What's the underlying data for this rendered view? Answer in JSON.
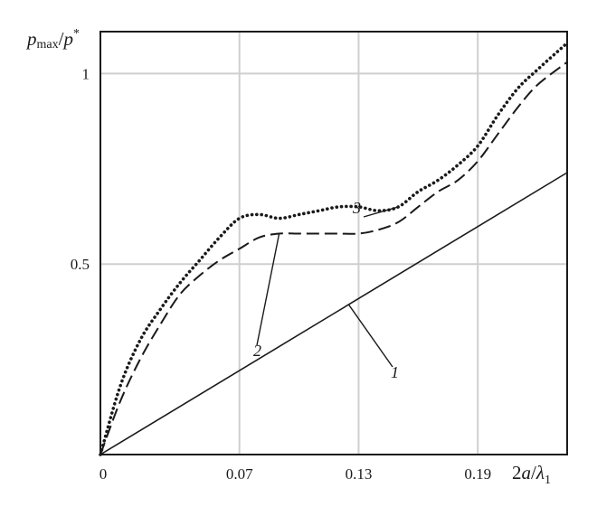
{
  "chart_data": {
    "type": "line",
    "ylabel": {
      "main": "p",
      "sub": "max",
      "sep": "/",
      "main2": "p",
      "sup": "*"
    },
    "xlabel": {
      "pre": "2",
      "main": "a",
      "sep": "/",
      "main2": "λ",
      "sub": "1"
    },
    "x_ticks": [
      "0",
      "0.07",
      "0.13",
      "0.19"
    ],
    "x_tick_values": [
      0,
      0.07,
      0.13,
      0.19
    ],
    "x_grid_values": [
      0.07,
      0.13,
      0.19
    ],
    "y_ticks": [
      "0.5",
      "1"
    ],
    "y_tick_values": [
      0.5,
      1
    ],
    "xlim": [
      0,
      0.235
    ],
    "ylim": [
      0,
      1.11
    ],
    "grid": true,
    "series": [
      {
        "name": "1",
        "style": "solid",
        "x": [
          0,
          0.235
        ],
        "y": [
          0,
          0.74
        ]
      },
      {
        "name": "2",
        "style": "dashed",
        "x": [
          0,
          0.01,
          0.02,
          0.03,
          0.04,
          0.05,
          0.06,
          0.07,
          0.08,
          0.09,
          0.1,
          0.11,
          0.12,
          0.13,
          0.14,
          0.15,
          0.16,
          0.17,
          0.18,
          0.19,
          0.2,
          0.21,
          0.22,
          0.235
        ],
        "y": [
          0.0,
          0.14,
          0.25,
          0.34,
          0.42,
          0.47,
          0.51,
          0.54,
          0.57,
          0.58,
          0.58,
          0.58,
          0.58,
          0.58,
          0.59,
          0.61,
          0.65,
          0.69,
          0.72,
          0.77,
          0.84,
          0.91,
          0.97,
          1.03
        ]
      },
      {
        "name": "3",
        "style": "dotted",
        "x": [
          0,
          0.01,
          0.02,
          0.03,
          0.04,
          0.05,
          0.06,
          0.07,
          0.08,
          0.09,
          0.1,
          0.11,
          0.12,
          0.13,
          0.14,
          0.15,
          0.16,
          0.17,
          0.18,
          0.19,
          0.2,
          0.21,
          0.22,
          0.235
        ],
        "y": [
          0.0,
          0.18,
          0.3,
          0.38,
          0.45,
          0.51,
          0.57,
          0.62,
          0.63,
          0.62,
          0.63,
          0.64,
          0.65,
          0.65,
          0.64,
          0.65,
          0.69,
          0.72,
          0.76,
          0.81,
          0.89,
          0.96,
          1.01,
          1.08
        ]
      }
    ]
  }
}
